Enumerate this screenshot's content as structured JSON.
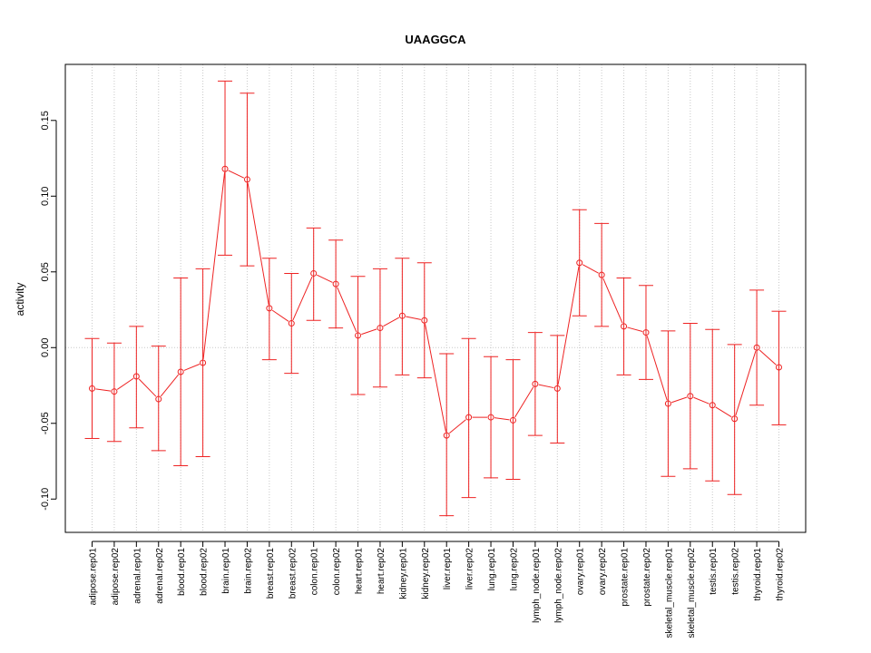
{
  "chart_data": {
    "type": "line",
    "title": "UAAGGCA",
    "xlabel": "",
    "ylabel": "activity",
    "ylim": [
      -0.122,
      0.187
    ],
    "grid": true,
    "colors": {
      "series": "#ee2222",
      "grid": "#c8c8c8",
      "axis": "#000000"
    },
    "y_ticks": [
      {
        "value": -0.1,
        "label": "-0.10"
      },
      {
        "value": -0.05,
        "label": "-0.05"
      },
      {
        "value": 0.0,
        "label": "0.00"
      },
      {
        "value": 0.05,
        "label": "0.05"
      },
      {
        "value": 0.1,
        "label": "0.10"
      },
      {
        "value": 0.15,
        "label": "0.15"
      }
    ],
    "categories": [
      "adipose.rep01",
      "adipose.rep02",
      "adrenal.rep01",
      "adrenal.rep02",
      "blood.rep01",
      "blood.rep02",
      "brain.rep01",
      "brain.rep02",
      "breast.rep01",
      "breast.rep02",
      "colon.rep01",
      "colon.rep02",
      "heart.rep01",
      "heart.rep02",
      "kidney.rep01",
      "kidney.rep02",
      "liver.rep01",
      "liver.rep02",
      "lung.rep01",
      "lung.rep02",
      "lymph_node.rep01",
      "lymph_node.rep02",
      "ovary.rep01",
      "ovary.rep02",
      "prostate.rep01",
      "prostate.rep02",
      "skeletal_muscle.rep01",
      "skeletal_muscle.rep02",
      "testis.rep01",
      "testis.rep02",
      "thyroid.rep01",
      "thyroid.rep02"
    ],
    "values": [
      -0.027,
      -0.029,
      -0.019,
      -0.034,
      -0.016,
      -0.01,
      0.118,
      0.111,
      0.026,
      0.016,
      0.049,
      0.042,
      0.008,
      0.013,
      0.021,
      0.018,
      -0.058,
      -0.046,
      -0.046,
      -0.048,
      -0.024,
      -0.027,
      0.056,
      0.048,
      0.014,
      0.01,
      -0.037,
      -0.032,
      -0.038,
      -0.047,
      0.0,
      -0.013
    ],
    "error_low": [
      -0.06,
      -0.062,
      -0.053,
      -0.068,
      -0.078,
      -0.072,
      0.061,
      0.054,
      -0.008,
      -0.017,
      0.018,
      0.013,
      -0.031,
      -0.026,
      -0.018,
      -0.02,
      -0.111,
      -0.099,
      -0.086,
      -0.087,
      -0.058,
      -0.063,
      0.021,
      0.014,
      -0.018,
      -0.021,
      -0.085,
      -0.08,
      -0.088,
      -0.097,
      -0.038,
      -0.051
    ],
    "error_high": [
      0.006,
      0.003,
      0.014,
      0.001,
      0.046,
      0.052,
      0.176,
      0.168,
      0.059,
      0.049,
      0.079,
      0.071,
      0.047,
      0.052,
      0.059,
      0.056,
      -0.004,
      0.006,
      -0.006,
      -0.008,
      0.01,
      0.008,
      0.091,
      0.082,
      0.046,
      0.041,
      0.011,
      0.016,
      0.012,
      0.002,
      0.038,
      0.024
    ]
  }
}
